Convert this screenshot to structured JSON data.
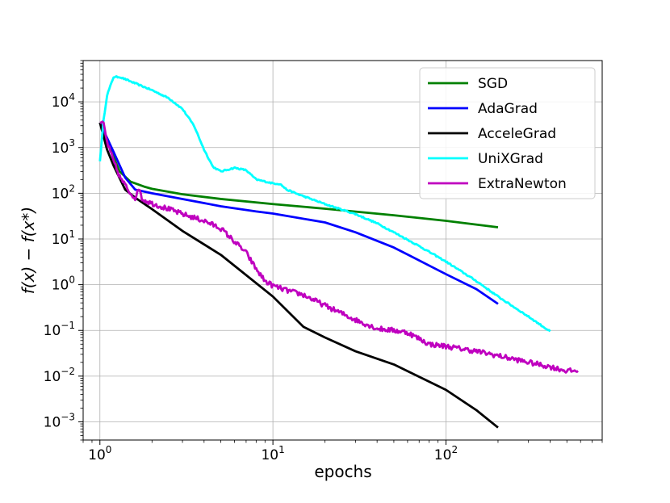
{
  "chart_data": {
    "type": "line",
    "xscale": "log",
    "yscale": "log",
    "xlim": [
      0.8,
      800
    ],
    "ylim": [
      0.0004,
      80000
    ],
    "xlabel": "epochs",
    "ylabel": "f(x) − f(x*)",
    "grid": true,
    "legend_position": "top-right",
    "x_ticks": [
      {
        "base": "10",
        "exp": "0",
        "value": 1
      },
      {
        "base": "10",
        "exp": "1",
        "value": 10
      },
      {
        "base": "10",
        "exp": "2",
        "value": 100
      }
    ],
    "y_ticks": [
      {
        "base": "10",
        "exp": "−3",
        "value": 0.001
      },
      {
        "base": "10",
        "exp": "−2",
        "value": 0.01
      },
      {
        "base": "10",
        "exp": "−1",
        "value": 0.1
      },
      {
        "base": "10",
        "exp": "0",
        "value": 1
      },
      {
        "base": "10",
        "exp": "1",
        "value": 10
      },
      {
        "base": "10",
        "exp": "2",
        "value": 100
      },
      {
        "base": "10",
        "exp": "3",
        "value": 1000
      },
      {
        "base": "10",
        "exp": "4",
        "value": 10000
      }
    ],
    "series": [
      {
        "name": "SGD",
        "color": "#008000",
        "noise": 0,
        "points": [
          [
            1,
            3500
          ],
          [
            1.15,
            900
          ],
          [
            1.3,
            300
          ],
          [
            1.5,
            180
          ],
          [
            1.8,
            140
          ],
          [
            2,
            125
          ],
          [
            3,
            95
          ],
          [
            5,
            75
          ],
          [
            10,
            58
          ],
          [
            20,
            46
          ],
          [
            50,
            33
          ],
          [
            100,
            25
          ],
          [
            200,
            18
          ]
        ]
      },
      {
        "name": "AdaGrad",
        "color": "#0000ff",
        "noise": 0,
        "points": [
          [
            1,
            3500
          ],
          [
            1.2,
            800
          ],
          [
            1.4,
            220
          ],
          [
            1.6,
            120
          ],
          [
            2,
            100
          ],
          [
            3,
            75
          ],
          [
            5,
            52
          ],
          [
            8,
            40
          ],
          [
            10,
            36
          ],
          [
            20,
            23
          ],
          [
            30,
            14
          ],
          [
            50,
            6.5
          ],
          [
            100,
            1.7
          ],
          [
            150,
            0.8
          ],
          [
            200,
            0.38
          ]
        ]
      },
      {
        "name": "AcceleGrad",
        "color": "#000000",
        "noise": 0,
        "points": [
          [
            1,
            3500
          ],
          [
            1.1,
            900
          ],
          [
            1.2,
            400
          ],
          [
            1.4,
            120
          ],
          [
            1.6,
            80
          ],
          [
            2,
            45
          ],
          [
            3,
            15
          ],
          [
            5,
            4.5
          ],
          [
            10,
            0.55
          ],
          [
            15,
            0.12
          ],
          [
            20,
            0.07
          ],
          [
            30,
            0.035
          ],
          [
            50,
            0.018
          ],
          [
            100,
            0.005
          ],
          [
            150,
            0.0018
          ],
          [
            200,
            0.00075
          ]
        ]
      },
      {
        "name": "UniXGrad",
        "color": "#00ffff",
        "noise": 0.015,
        "points": [
          [
            1,
            500
          ],
          [
            1.05,
            4000
          ],
          [
            1.1,
            14000
          ],
          [
            1.2,
            35000
          ],
          [
            1.3,
            35000
          ],
          [
            1.5,
            28000
          ],
          [
            2,
            18000
          ],
          [
            2.5,
            12000
          ],
          [
            3,
            7000
          ],
          [
            3.5,
            3000
          ],
          [
            4,
            900
          ],
          [
            4.5,
            380
          ],
          [
            5,
            300
          ],
          [
            6,
            360
          ],
          [
            7,
            320
          ],
          [
            8,
            200
          ],
          [
            10,
            165
          ],
          [
            11,
            160
          ],
          [
            12,
            120
          ],
          [
            14,
            95
          ],
          [
            20,
            58
          ],
          [
            30,
            35
          ],
          [
            40,
            22
          ],
          [
            50,
            14
          ],
          [
            70,
            7
          ],
          [
            100,
            3.2
          ],
          [
            150,
            1.2
          ],
          [
            200,
            0.55
          ],
          [
            300,
            0.2
          ],
          [
            400,
            0.095
          ]
        ]
      },
      {
        "name": "ExtraNewton",
        "color": "#bf00bf",
        "noise": 0.055,
        "points": [
          [
            1,
            3500
          ],
          [
            1.05,
            3300
          ],
          [
            1.1,
            1300
          ],
          [
            1.2,
            500
          ],
          [
            1.3,
            230
          ],
          [
            1.5,
            100
          ],
          [
            1.6,
            80
          ],
          [
            1.7,
            130
          ],
          [
            1.75,
            75
          ],
          [
            2,
            60
          ],
          [
            2.5,
            45
          ],
          [
            3,
            35
          ],
          [
            4,
            25
          ],
          [
            5,
            17
          ],
          [
            7,
            5
          ],
          [
            8,
            2.2
          ],
          [
            9,
            1.2
          ],
          [
            10,
            0.95
          ],
          [
            12,
            0.75
          ],
          [
            15,
            0.6
          ],
          [
            20,
            0.35
          ],
          [
            30,
            0.17
          ],
          [
            40,
            0.11
          ],
          [
            50,
            0.1
          ],
          [
            60,
            0.09
          ],
          [
            80,
            0.05
          ],
          [
            100,
            0.045
          ],
          [
            150,
            0.035
          ],
          [
            200,
            0.028
          ],
          [
            300,
            0.02
          ],
          [
            400,
            0.016
          ],
          [
            500,
            0.013
          ],
          [
            580,
            0.013
          ]
        ]
      }
    ]
  }
}
